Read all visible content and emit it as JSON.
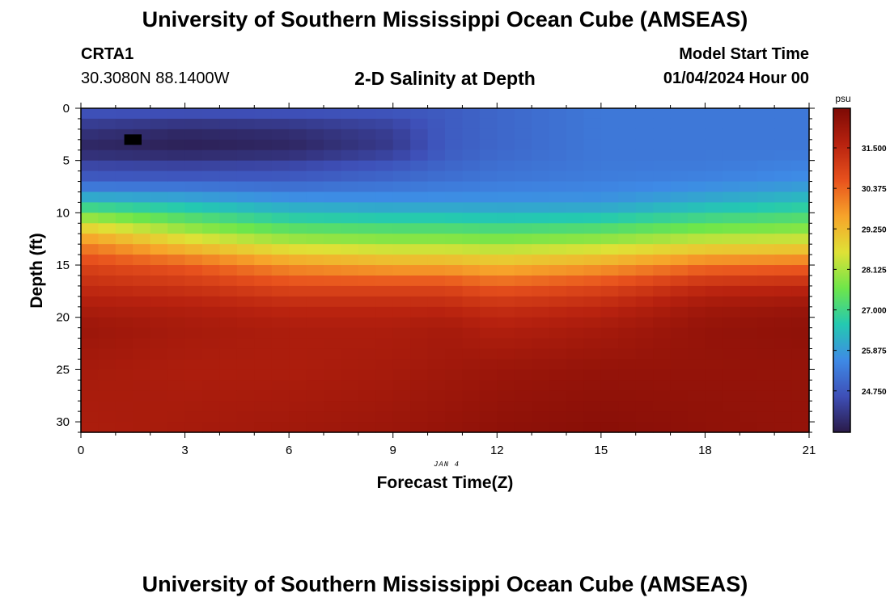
{
  "page": {
    "title_top": "University of Southern Mississippi Ocean Cube (AMSEAS)",
    "title_bottom": "University of Southern Mississippi Ocean Cube (AMSEAS)",
    "station_id": "CRTA1",
    "coordinates": "30.3080N  88.1400W",
    "plot_title": "2-D Salinity at Depth",
    "model_start_label": "Model Start Time",
    "model_start_value": "01/04/2024 Hour 00",
    "date_label": "JAN 4"
  },
  "chart_data": {
    "type": "heatmap",
    "title": "2-D Salinity at Depth",
    "xlabel": "Forecast Time(Z)",
    "ylabel": "Depth (ft)",
    "xlim": [
      0,
      21
    ],
    "ylim": [
      0,
      31
    ],
    "y_inverted": true,
    "x_ticks": [
      0,
      3,
      6,
      9,
      12,
      15,
      18,
      21
    ],
    "y_ticks": [
      0,
      5,
      10,
      15,
      20,
      25,
      30
    ],
    "colorbar": {
      "unit": "psu",
      "range": [
        23.6,
        32.6
      ],
      "tick_values": [
        31.5,
        30.375,
        29.25,
        28.125,
        27.0,
        25.875,
        24.75
      ],
      "tick_labels": [
        "31.500",
        "30.375",
        "29.250",
        "28.125",
        "27.000",
        "25.875",
        "24.750"
      ],
      "colors": [
        "#2a1a48",
        "#3e4fb7",
        "#3e8ae6",
        "#24c9b1",
        "#6ee64a",
        "#dfe136",
        "#f7a42a",
        "#e8521d",
        "#b8220f",
        "#7d0a05"
      ]
    },
    "profile_time_h": [
      0,
      3,
      6,
      9,
      10.5,
      12,
      15,
      18,
      21
    ],
    "profile_depth_ft": [
      0,
      2,
      4,
      5,
      7,
      9,
      11,
      13,
      15,
      17,
      19,
      21,
      25,
      31
    ],
    "salinity_profiles_psu": [
      [
        24.8,
        24.1,
        23.8,
        24.3,
        24.9,
        26.5,
        28.5,
        30.0,
        30.9,
        31.4,
        31.8,
        32.1,
        31.9,
        31.8
      ],
      [
        24.8,
        23.9,
        23.7,
        24.2,
        24.9,
        26.3,
        27.6,
        29.0,
        30.5,
        31.2,
        31.7,
        31.9,
        31.8,
        31.9
      ],
      [
        24.8,
        24.0,
        23.8,
        24.3,
        24.9,
        25.9,
        27.0,
        28.3,
        29.8,
        30.8,
        31.5,
        31.8,
        31.8,
        32.0
      ],
      [
        24.8,
        24.3,
        24.2,
        24.6,
        25.1,
        25.8,
        26.9,
        28.1,
        29.5,
        30.8,
        31.5,
        31.8,
        31.9,
        32.1
      ],
      [
        24.8,
        24.8,
        24.8,
        24.9,
        25.2,
        25.8,
        26.9,
        28.1,
        29.5,
        30.8,
        31.5,
        31.9,
        32.0,
        32.2
      ],
      [
        25.0,
        25.0,
        25.0,
        25.1,
        25.3,
        25.8,
        26.8,
        28.0,
        29.3,
        30.5,
        31.3,
        31.7,
        32.1,
        32.3
      ],
      [
        25.3,
        25.3,
        25.3,
        25.3,
        25.4,
        25.8,
        26.9,
        28.2,
        29.6,
        30.8,
        31.5,
        31.9,
        32.2,
        32.4
      ],
      [
        25.3,
        25.3,
        25.3,
        25.3,
        25.5,
        26.2,
        27.3,
        28.6,
        30.2,
        31.4,
        32.0,
        32.2,
        32.2,
        32.3
      ],
      [
        25.3,
        25.3,
        25.3,
        25.4,
        25.7,
        26.5,
        27.5,
        28.7,
        30.3,
        31.5,
        32.1,
        32.3,
        32.2,
        32.2
      ]
    ],
    "masked_cell": {
      "time_h": [
        1.25,
        1.75
      ],
      "depth_ft": [
        2.5,
        3.5
      ]
    }
  }
}
